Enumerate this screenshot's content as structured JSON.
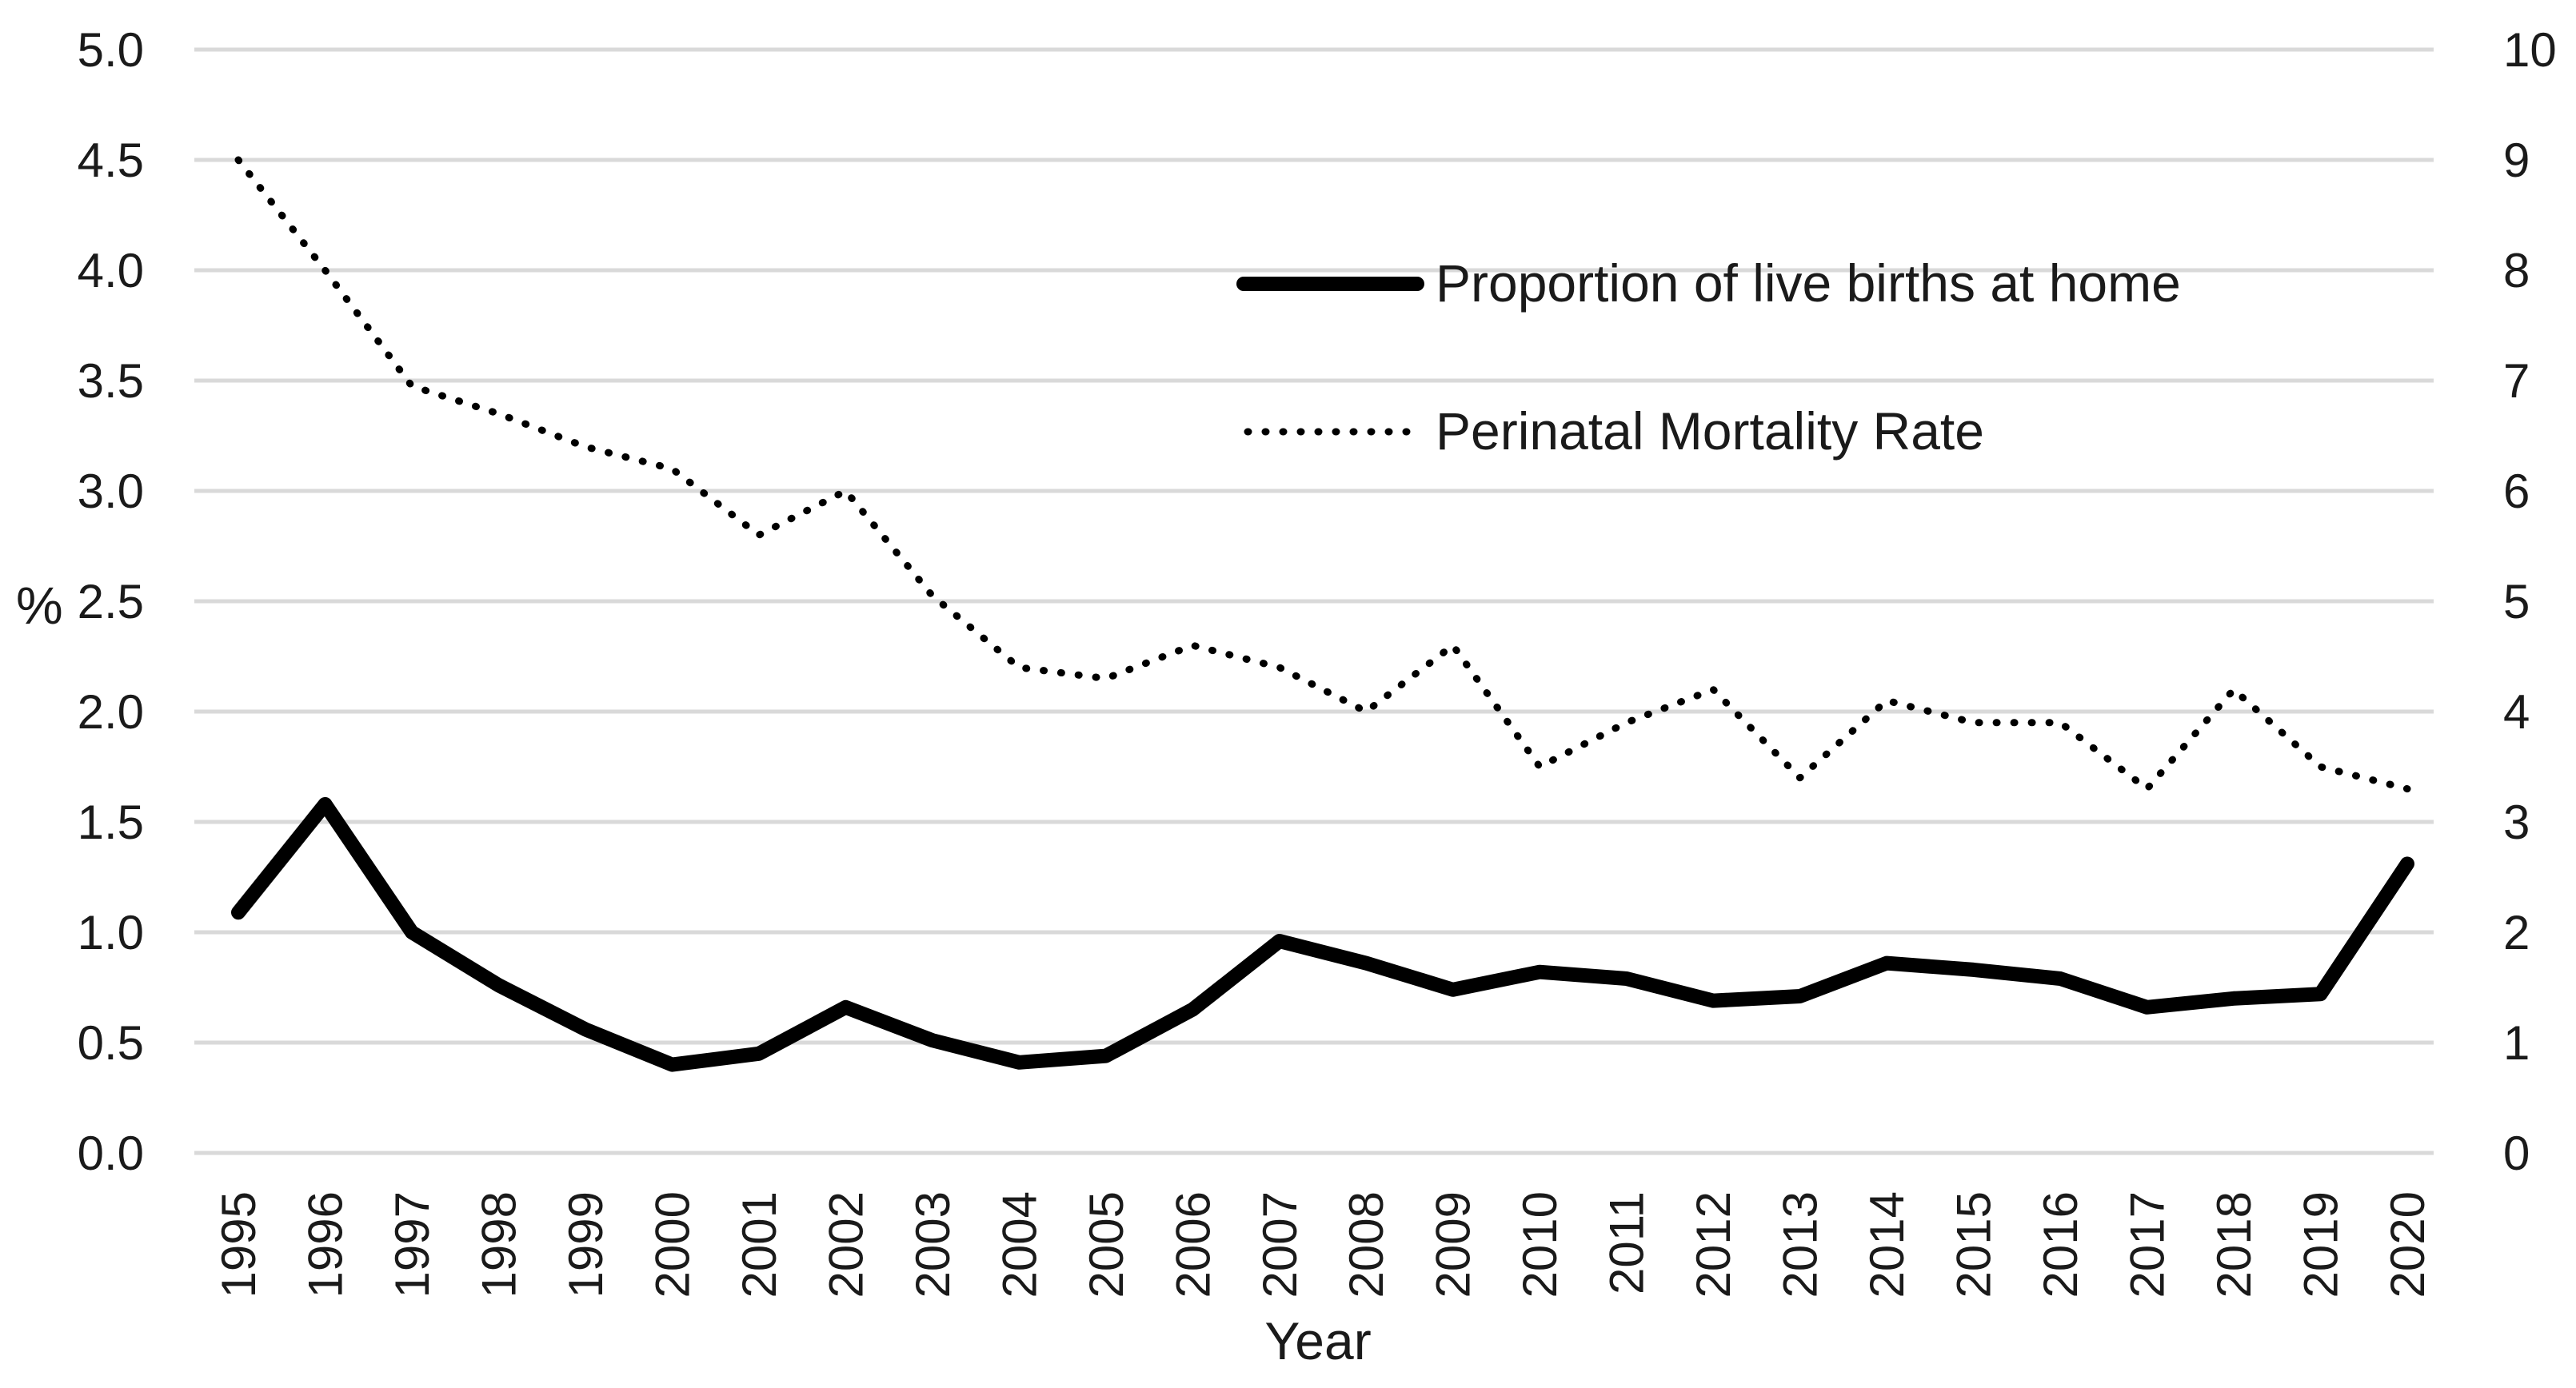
{
  "chart_data": {
    "type": "line",
    "title": "",
    "xlabel": "Year",
    "ylabel": "%",
    "y2label": "",
    "x": [
      "1995",
      "1996",
      "1997",
      "1998",
      "1999",
      "2000",
      "2001",
      "2002",
      "2003",
      "2004",
      "2005",
      "2006",
      "2007",
      "2008",
      "2009",
      "2010",
      "2011",
      "2012",
      "2013",
      "2014",
      "2015",
      "2016",
      "2017",
      "2018",
      "2019",
      "2020"
    ],
    "ylim": [
      0,
      5
    ],
    "yticks": [
      "0.0",
      "0.5",
      "1.0",
      "1.5",
      "2.0",
      "2.5",
      "3.0",
      "3.5",
      "4.0",
      "4.5",
      "5.0"
    ],
    "y2lim": [
      0,
      10
    ],
    "y2ticks": [
      "0",
      "1",
      "2",
      "3",
      "4",
      "5",
      "6",
      "7",
      "8",
      "9",
      "10"
    ],
    "grid": true,
    "legend_position": "top-right",
    "series": [
      {
        "name": "Proportion of live births at home",
        "axis": "left",
        "style": "solid",
        "color": "#000000",
        "values": [
          1.09,
          1.58,
          1.0,
          0.76,
          0.56,
          0.4,
          0.45,
          0.66,
          0.51,
          0.41,
          0.44,
          0.65,
          0.96,
          0.86,
          0.74,
          0.82,
          0.79,
          0.69,
          0.71,
          0.86,
          0.83,
          0.79,
          0.66,
          0.7,
          0.72,
          1.31
        ]
      },
      {
        "name": "Perinatal Mortality Rate",
        "axis": "right",
        "style": "dotted",
        "color": "#000000",
        "values": [
          9.0,
          8.0,
          6.95,
          6.7,
          6.4,
          6.2,
          5.6,
          6.0,
          5.05,
          4.4,
          4.3,
          4.6,
          4.4,
          4.0,
          4.6,
          3.5,
          3.9,
          4.2,
          3.4,
          4.1,
          3.9,
          3.9,
          3.3,
          4.2,
          3.5,
          3.3
        ]
      }
    ]
  }
}
